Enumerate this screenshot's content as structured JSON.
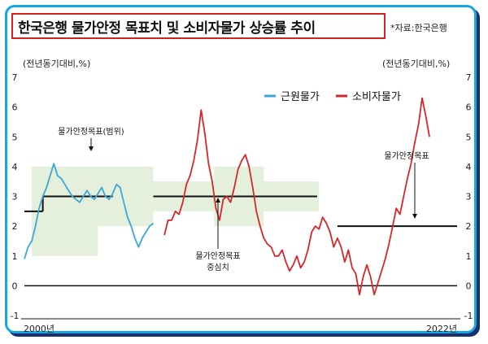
{
  "title": "한국은행 물가안정 목표치 및 소비자물가 상승률 추이",
  "source": "*자료:한국은행",
  "units": {
    "left": "(전년동기대비,%)",
    "right": "(전년동기대비,%)"
  },
  "colors": {
    "core": "#3aa8d8",
    "cpi": "#d7262a",
    "band": "#e4efdc",
    "target": "#111111",
    "frame": "#16a7e0",
    "title_border": "#d0241f"
  },
  "chart_data": {
    "type": "line",
    "x_start_label": "2000년",
    "x_end_label": "2022년",
    "x_range": [
      1999,
      2022.5
    ],
    "ylim": [
      -1,
      7
    ],
    "yticks": [
      -1,
      0,
      1,
      2,
      3,
      4,
      5,
      6,
      7
    ],
    "legend": [
      {
        "name": "근원물가",
        "color": "#3aa8d8"
      },
      {
        "name": "소비자물가",
        "color": "#d7262a"
      }
    ],
    "series": [
      {
        "name": "근원물가",
        "color": "#3aa8d8",
        "points": [
          [
            1999.0,
            0.9
          ],
          [
            1999.2,
            1.3
          ],
          [
            1999.4,
            1.5
          ],
          [
            1999.6,
            2.0
          ],
          [
            1999.8,
            2.6
          ],
          [
            2000.0,
            3.0
          ],
          [
            2000.2,
            3.3
          ],
          [
            2000.4,
            3.7
          ],
          [
            2000.6,
            4.1
          ],
          [
            2000.8,
            3.7
          ],
          [
            2001.0,
            3.6
          ],
          [
            2001.2,
            3.4
          ],
          [
            2001.4,
            3.2
          ],
          [
            2001.6,
            3.0
          ],
          [
            2001.8,
            2.9
          ],
          [
            2002.0,
            2.8
          ],
          [
            2002.2,
            3.0
          ],
          [
            2002.4,
            3.2
          ],
          [
            2002.6,
            3.0
          ],
          [
            2002.8,
            2.9
          ],
          [
            2003.0,
            3.1
          ],
          [
            2003.2,
            3.3
          ],
          [
            2003.4,
            3.0
          ],
          [
            2003.6,
            2.9
          ],
          [
            2003.8,
            3.1
          ],
          [
            2004.0,
            3.4
          ],
          [
            2004.2,
            3.3
          ],
          [
            2004.4,
            2.8
          ],
          [
            2004.6,
            2.3
          ],
          [
            2004.8,
            2.0
          ],
          [
            2005.0,
            1.6
          ],
          [
            2005.2,
            1.3
          ],
          [
            2005.4,
            1.6
          ],
          [
            2005.6,
            1.8
          ],
          [
            2005.8,
            2.0
          ],
          [
            2006.0,
            2.1
          ]
        ]
      },
      {
        "name": "소비자물가",
        "color": "#d7262a",
        "points": [
          [
            2006.6,
            1.7
          ],
          [
            2006.8,
            2.2
          ],
          [
            2007.0,
            2.2
          ],
          [
            2007.2,
            2.5
          ],
          [
            2007.4,
            2.4
          ],
          [
            2007.6,
            2.8
          ],
          [
            2007.8,
            3.4
          ],
          [
            2008.0,
            3.7
          ],
          [
            2008.2,
            4.2
          ],
          [
            2008.4,
            4.9
          ],
          [
            2008.6,
            5.9
          ],
          [
            2008.8,
            5.1
          ],
          [
            2009.0,
            4.1
          ],
          [
            2009.2,
            3.5
          ],
          [
            2009.4,
            2.6
          ],
          [
            2009.6,
            2.2
          ],
          [
            2009.8,
            2.9
          ],
          [
            2010.0,
            3.0
          ],
          [
            2010.2,
            2.8
          ],
          [
            2010.4,
            3.3
          ],
          [
            2010.6,
            3.9
          ],
          [
            2010.8,
            4.2
          ],
          [
            2011.0,
            4.4
          ],
          [
            2011.2,
            4.0
          ],
          [
            2011.4,
            3.3
          ],
          [
            2011.6,
            2.5
          ],
          [
            2011.8,
            2.0
          ],
          [
            2012.0,
            1.6
          ],
          [
            2012.2,
            1.4
          ],
          [
            2012.4,
            1.3
          ],
          [
            2012.6,
            1.0
          ],
          [
            2012.8,
            1.0
          ],
          [
            2013.0,
            1.2
          ],
          [
            2013.2,
            0.8
          ],
          [
            2013.4,
            0.5
          ],
          [
            2013.6,
            0.7
          ],
          [
            2013.8,
            1.0
          ],
          [
            2014.0,
            0.6
          ],
          [
            2014.2,
            0.8
          ],
          [
            2014.4,
            1.2
          ],
          [
            2014.6,
            1.8
          ],
          [
            2014.8,
            2.0
          ],
          [
            2015.0,
            1.9
          ],
          [
            2015.2,
            2.3
          ],
          [
            2015.4,
            2.1
          ],
          [
            2015.6,
            1.8
          ],
          [
            2015.8,
            1.3
          ],
          [
            2016.0,
            1.6
          ],
          [
            2016.2,
            1.3
          ],
          [
            2016.4,
            0.8
          ],
          [
            2016.6,
            1.2
          ],
          [
            2016.8,
            0.6
          ],
          [
            2017.0,
            0.4
          ],
          [
            2017.2,
            -0.3
          ],
          [
            2017.4,
            0.3
          ],
          [
            2017.6,
            0.7
          ],
          [
            2017.8,
            0.3
          ],
          [
            2018.0,
            -0.3
          ],
          [
            2018.2,
            0.1
          ],
          [
            2018.4,
            0.5
          ],
          [
            2018.6,
            0.9
          ],
          [
            2018.8,
            1.4
          ],
          [
            2019.0,
            2.0
          ],
          [
            2019.2,
            2.6
          ],
          [
            2019.4,
            2.4
          ],
          [
            2019.6,
            3.0
          ],
          [
            2019.8,
            3.6
          ],
          [
            2020.0,
            4.1
          ],
          [
            2020.2,
            4.8
          ],
          [
            2020.4,
            5.4
          ],
          [
            2020.6,
            6.3
          ],
          [
            2020.8,
            5.7
          ],
          [
            2021.0,
            5.0
          ]
        ]
      }
    ],
    "target_bands": [
      {
        "x": [
          1999.4,
          2003.0
        ],
        "y": [
          1.0,
          4.0
        ]
      },
      {
        "x": [
          2003.0,
          2006.0
        ],
        "y": [
          2.0,
          4.0
        ]
      },
      {
        "x": [
          2006.0,
          2009.3
        ],
        "y": [
          2.5,
          3.5
        ]
      },
      {
        "x": [
          2009.3,
          2012.0
        ],
        "y": [
          2.0,
          4.0
        ]
      },
      {
        "x": [
          2012.0,
          2015.0
        ],
        "y": [
          2.5,
          3.5
        ]
      }
    ],
    "target_lines": [
      {
        "x": [
          1999.0,
          2000.0
        ],
        "y": 2.5
      },
      {
        "x": [
          2000.0,
          2000.3
        ],
        "y": 3.0,
        "vertical_step": true
      },
      {
        "x": [
          2000.3,
          2003.8
        ],
        "y": 3.0
      },
      {
        "x": [
          2006.0,
          2014.9
        ],
        "y": 3.0
      },
      {
        "x": [
          2016.0,
          2022.5
        ],
        "y": 2.0
      }
    ],
    "annotations": [
      {
        "text": "물가안정목표(범위)"
      },
      {
        "text": "물가안정목표"
      },
      {
        "text": "중심치"
      },
      {
        "text": "물가안정목표"
      }
    ]
  }
}
